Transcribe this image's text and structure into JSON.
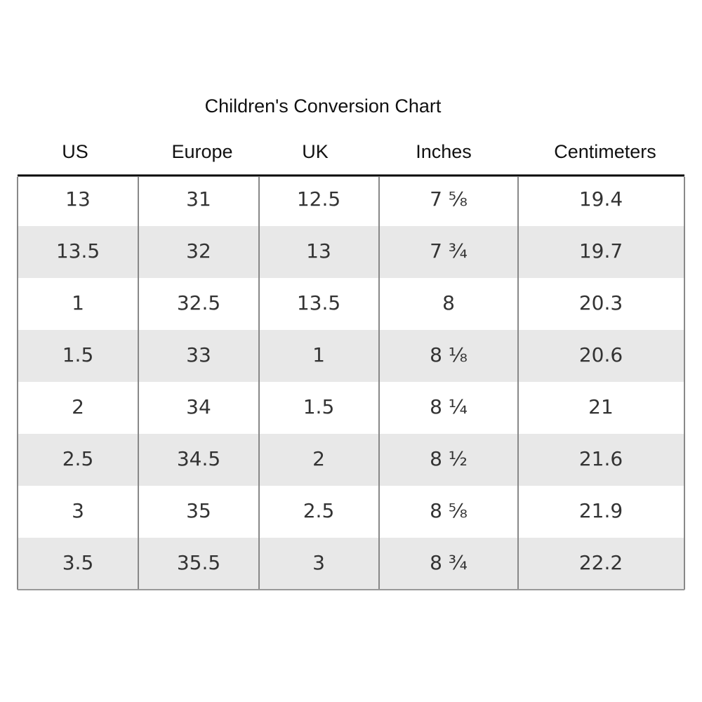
{
  "header": {
    "title": "Children's Conversion Chart"
  },
  "table": {
    "columns": [
      "US",
      "Europe",
      "UK",
      "Inches",
      "Centimeters"
    ],
    "rows": [
      [
        "13",
        "31",
        "12.5",
        "7 ⅝",
        "19.4"
      ],
      [
        "13.5",
        "32",
        "13",
        "7 ¾",
        "19.7"
      ],
      [
        "1",
        "32.5",
        "13.5",
        "8",
        "20.3"
      ],
      [
        "1.5",
        "33",
        "1",
        "8 ⅛",
        "20.6"
      ],
      [
        "2",
        "34",
        "1.5",
        "8 ¼",
        "21"
      ],
      [
        "2.5",
        "34.5",
        "2",
        "8 ½",
        "21.6"
      ],
      [
        "3",
        "35",
        "2.5",
        "8 ⅝",
        "21.9"
      ],
      [
        "3.5",
        "35.5",
        "3",
        "8 ¾",
        "22.2"
      ]
    ]
  }
}
